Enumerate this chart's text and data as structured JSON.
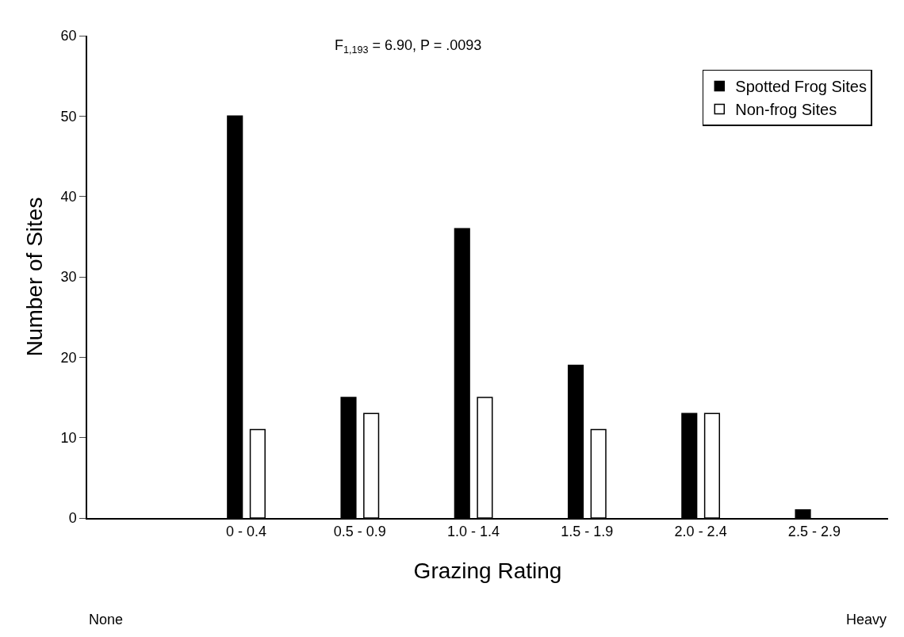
{
  "chart_data": {
    "type": "bar",
    "xlabel": "Grazing Rating",
    "ylabel": "Number of Sites",
    "categories": [
      "0 - 0.4",
      "0.5 - 0.9",
      "1.0 - 1.4",
      "1.5 - 1.9",
      "2.0 - 2.4",
      "2.5 - 2.9"
    ],
    "series": [
      {
        "name": "Spotted Frog Sites",
        "color": "#000000",
        "values": [
          50,
          15,
          36,
          19,
          13,
          1
        ]
      },
      {
        "name": "Non-frog Sites",
        "color": "#ffffff",
        "values": [
          11,
          13,
          15,
          11,
          13,
          0
        ]
      }
    ],
    "ylim": [
      0,
      60
    ],
    "yticks": [
      0,
      10,
      20,
      30,
      40,
      50,
      60
    ],
    "legend": "top right",
    "annotations": [
      "F$_{1,193}$ = 6.90, P = .0093",
      "None",
      "Heavy"
    ]
  }
}
